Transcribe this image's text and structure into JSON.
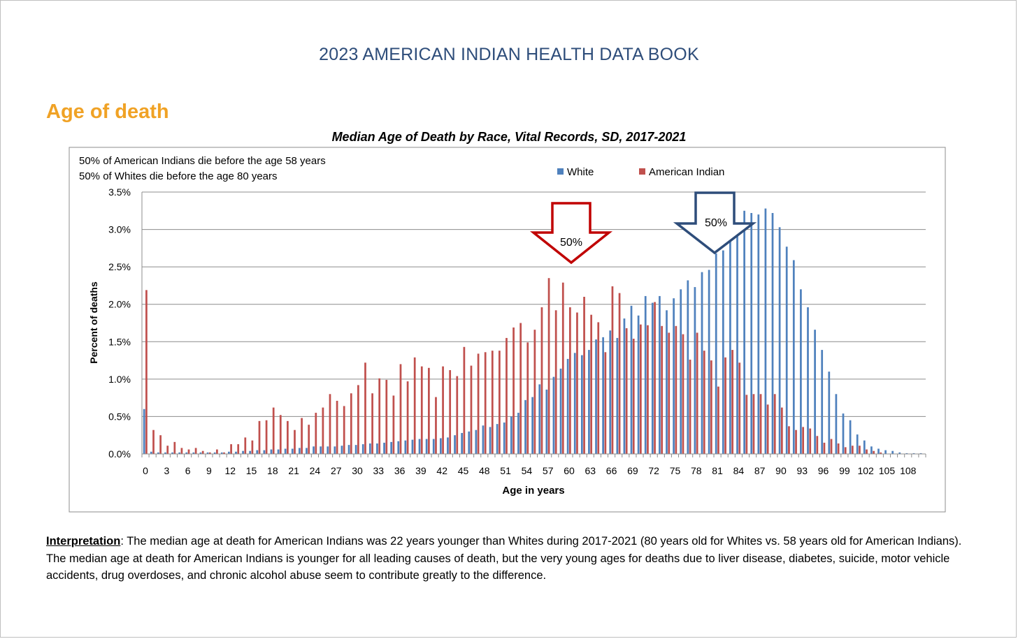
{
  "document": {
    "header": "2023 AMERICAN INDIAN HEALTH DATA BOOK",
    "section_title": "Age of death"
  },
  "interpretation": {
    "label": "Interpretation",
    "text": ":  The median age at death for American Indians was 22 years younger than Whites during 2017-2021 (80 years old for Whites vs. 58 years old for American Indians). The median age at death for American Indians is younger for all leading causes of death, but the very young ages for deaths due to liver disease, diabetes, suicide, motor vehicle accidents, drug overdoses, and chronic alcohol abuse seem to contribute greatly to the difference."
  },
  "chart_data": {
    "type": "bar",
    "title": "Median Age of Death by Race, Vital Records, SD, 2017-2021",
    "xlabel": "Age in years",
    "ylabel": "Percent of deaths",
    "ylim": [
      0,
      3.5
    ],
    "yticks": [
      0,
      0.5,
      1.0,
      1.5,
      2.0,
      2.5,
      3.0,
      3.5
    ],
    "ytick_labels": [
      "0.0%",
      "0.5%",
      "1.0%",
      "1.5%",
      "2.0%",
      "2.5%",
      "3.0%",
      "3.5%"
    ],
    "x_tick_labels": [
      "0",
      "3",
      "6",
      "9",
      "12",
      "15",
      "18",
      "21",
      "24",
      "27",
      "30",
      "33",
      "36",
      "39",
      "42",
      "45",
      "48",
      "51",
      "54",
      "57",
      "60",
      "63",
      "66",
      "69",
      "72",
      "75",
      "78",
      "81",
      "84",
      "87",
      "90",
      "93",
      "96",
      "99",
      "102",
      "105",
      "108"
    ],
    "x_tick_step": 3,
    "grid": "horizontal",
    "legend_position": "top",
    "annotations": [
      "50% of American Indians die before the age 58 years",
      "50% of Whites die before the age 80 years"
    ],
    "median_markers": [
      {
        "series": "American Indian",
        "age": 58,
        "label": "50%",
        "color": "#c00000"
      },
      {
        "series": "White",
        "age": 80,
        "label": "50%",
        "color": "#2e4d7a"
      }
    ],
    "series": [
      {
        "name": "White",
        "color": "#4f81bd",
        "values": [
          0.6,
          0.03,
          0.02,
          0.02,
          0.02,
          0.02,
          0.02,
          0.02,
          0.02,
          0.02,
          0.02,
          0.02,
          0.03,
          0.03,
          0.04,
          0.04,
          0.05,
          0.05,
          0.06,
          0.06,
          0.07,
          0.07,
          0.08,
          0.08,
          0.1,
          0.1,
          0.1,
          0.1,
          0.11,
          0.12,
          0.12,
          0.13,
          0.14,
          0.14,
          0.15,
          0.16,
          0.17,
          0.18,
          0.19,
          0.2,
          0.2,
          0.2,
          0.21,
          0.22,
          0.25,
          0.28,
          0.3,
          0.32,
          0.38,
          0.36,
          0.4,
          0.42,
          0.5,
          0.55,
          0.72,
          0.76,
          0.93,
          0.86,
          1.03,
          1.14,
          1.27,
          1.35,
          1.32,
          1.39,
          1.53,
          1.56,
          1.65,
          1.55,
          1.81,
          1.98,
          1.85,
          2.11,
          2.02,
          2.11,
          1.92,
          2.08,
          2.2,
          2.32,
          2.23,
          2.43,
          2.46,
          2.68,
          2.72,
          2.84,
          2.91,
          3.25,
          3.22,
          3.2,
          3.28,
          3.22,
          3.03,
          2.77,
          2.59,
          2.2,
          1.96,
          1.66,
          1.39,
          1.1,
          0.8,
          0.54,
          0.45,
          0.26,
          0.18,
          0.1,
          0.07,
          0.05,
          0.04,
          0.02,
          0.01,
          0.01,
          0.01
        ]
      },
      {
        "name": "American Indian",
        "color": "#c0504d",
        "values": [
          2.19,
          0.32,
          0.25,
          0.11,
          0.16,
          0.08,
          0.06,
          0.08,
          0.04,
          0.02,
          0.06,
          0.02,
          0.13,
          0.13,
          0.22,
          0.18,
          0.44,
          0.45,
          0.62,
          0.52,
          0.44,
          0.32,
          0.48,
          0.39,
          0.55,
          0.62,
          0.8,
          0.71,
          0.64,
          0.81,
          0.92,
          1.22,
          0.81,
          1.01,
          0.99,
          0.78,
          1.2,
          0.97,
          1.29,
          1.17,
          1.15,
          0.76,
          1.17,
          1.12,
          1.04,
          1.43,
          1.18,
          1.34,
          1.36,
          1.38,
          1.38,
          1.55,
          1.69,
          1.75,
          1.49,
          1.66,
          1.96,
          2.35,
          1.92,
          2.29,
          1.96,
          1.89,
          2.1,
          1.86,
          1.76,
          1.36,
          2.24,
          2.15,
          1.68,
          1.54,
          1.73,
          1.72,
          2.03,
          1.71,
          1.62,
          1.71,
          1.6,
          1.26,
          1.62,
          1.38,
          1.25,
          0.9,
          1.29,
          1.39,
          1.22,
          0.79,
          0.8,
          0.8,
          0.66,
          0.8,
          0.62,
          0.37,
          0.32,
          0.36,
          0.34,
          0.24,
          0.15,
          0.2,
          0.14,
          0.09,
          0.11,
          0.11,
          0.06,
          0.04,
          0.02,
          0.0,
          0.0,
          0.0,
          0.0,
          0.0,
          0.0
        ]
      }
    ]
  }
}
